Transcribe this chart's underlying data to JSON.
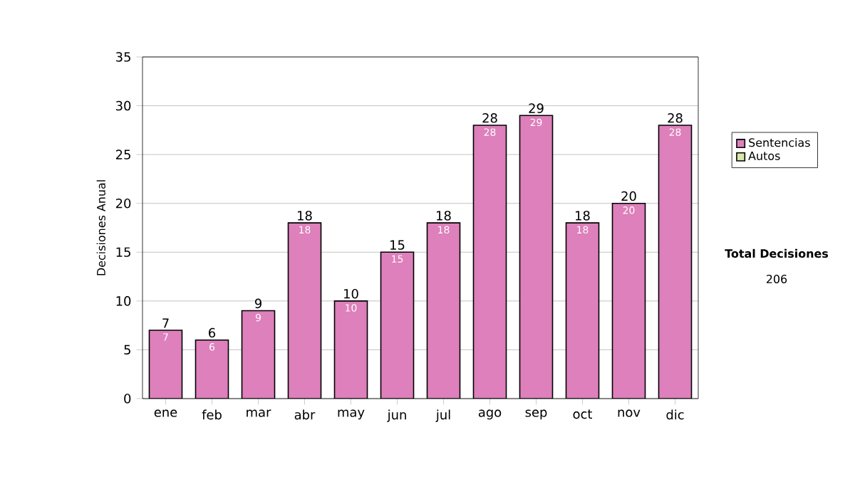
{
  "chart_data": {
    "type": "bar",
    "stacked": true,
    "ylabel": "Decisiones Anual",
    "categories": [
      "ene",
      "feb",
      "mar",
      "abr",
      "may",
      "jun",
      "jul",
      "ago",
      "sep",
      "oct",
      "nov",
      "dic"
    ],
    "series": [
      {
        "name": "Sentencias",
        "color": "#dd80bb",
        "values": [
          7,
          6,
          9,
          18,
          10,
          15,
          18,
          28,
          29,
          18,
          20,
          28
        ],
        "value_labels": [
          "7",
          "6",
          "9",
          "18",
          "10",
          "15",
          "18",
          "28",
          "29",
          "18",
          "20",
          "28"
        ]
      },
      {
        "name": "Autos",
        "color": "#d8e8a8",
        "values": [
          0,
          0,
          0,
          0,
          0,
          0,
          0,
          0,
          0,
          0,
          0,
          0
        ]
      }
    ],
    "totals": [
      "7",
      "6",
      "9",
      "18",
      "10",
      "15",
      "18",
      "28",
      "29",
      "18",
      "20",
      "28"
    ],
    "ylim": [
      0,
      35
    ],
    "yticks": [
      0,
      5,
      10,
      15,
      20,
      25,
      30,
      35
    ],
    "grid": "y",
    "legend": "right",
    "annotations": [
      "**Total Decisiones**",
      "206"
    ]
  }
}
